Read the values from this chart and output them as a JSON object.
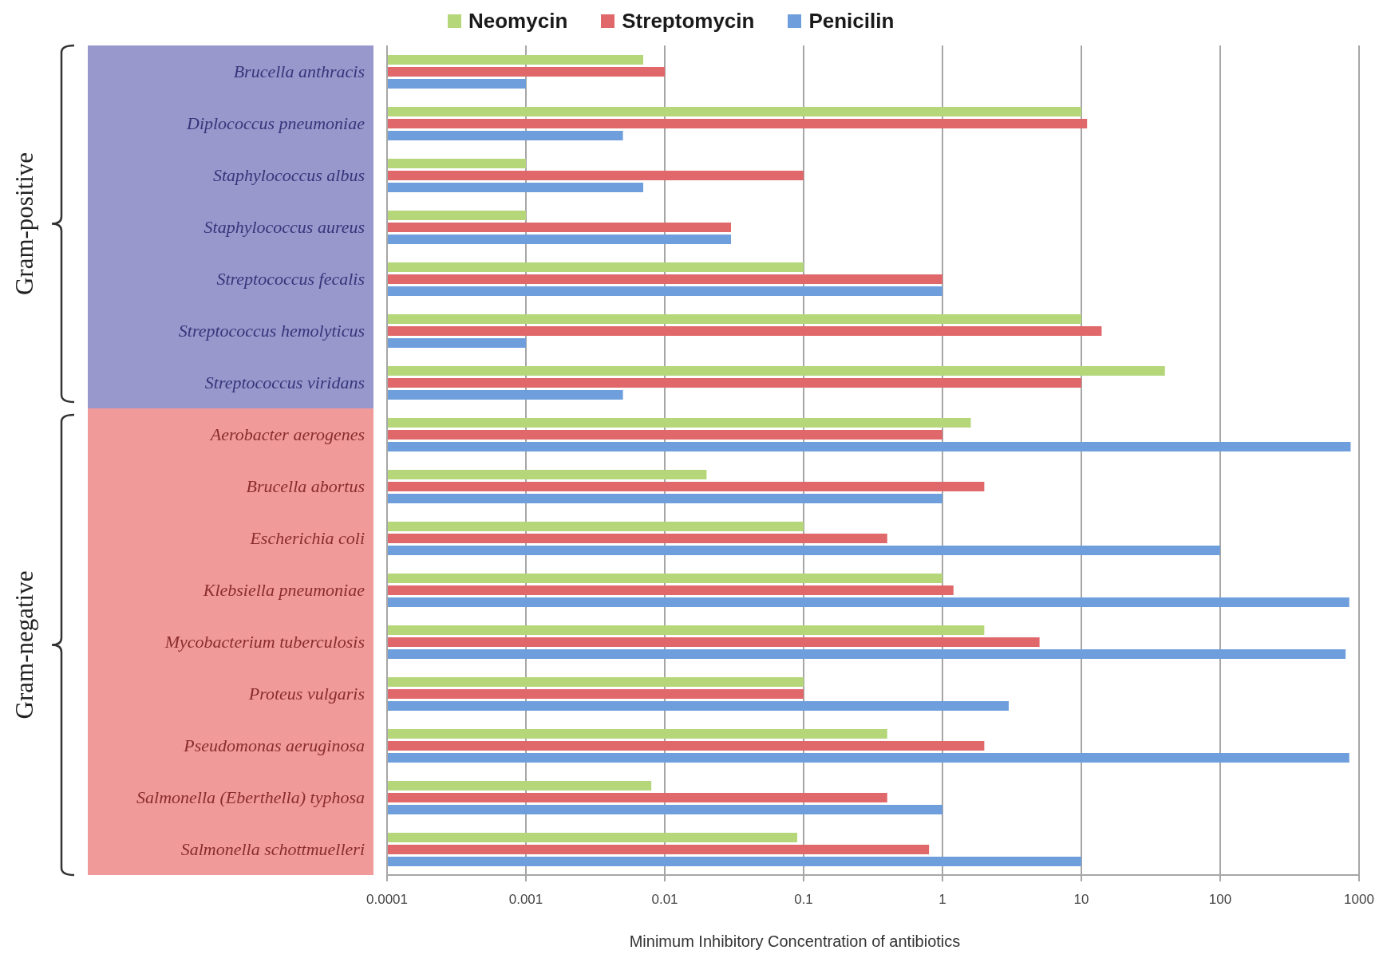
{
  "chart_data": {
    "type": "bar",
    "orientation": "horizontal",
    "xlabel": "Minimum Inhibitory Concentration of antibiotics",
    "categories": [
      "Brucella anthracis",
      "Diplococcus pneumoniae",
      "Staphylococcus albus",
      "Staphylococcus aureus",
      "Streptococcus fecalis",
      "Streptococcus hemolyticus",
      "Streptococcus viridans",
      "Aerobacter aerogenes",
      "Brucella abortus",
      "Escherichia coli",
      "Klebsiella pneumoniae",
      "Mycobacterium tuberculosis",
      "Proteus vulgaris",
      "Pseudomonas aeruginosa",
      "Salmonella (Eberthella) typhosa",
      "Salmonella schottmuelleri"
    ],
    "series": [
      {
        "name": "Neomycin",
        "color": "#b5d77a",
        "values": [
          0.007,
          10,
          0.001,
          0.001,
          0.1,
          10,
          40,
          1.6,
          0.02,
          0.1,
          1,
          2,
          0.1,
          0.4,
          0.008,
          0.09
        ]
      },
      {
        "name": "Streptomycin",
        "color": "#e0676a",
        "values": [
          0.01,
          11,
          0.1,
          0.03,
          1,
          14,
          10,
          1,
          2,
          0.4,
          1.2,
          5,
          0.1,
          2,
          0.4,
          0.8
        ]
      },
      {
        "name": "Penicilin",
        "color": "#6e9fdc",
        "values": [
          0.001,
          0.005,
          0.007,
          0.03,
          1,
          0.001,
          0.005,
          870,
          1,
          100,
          850,
          800,
          3,
          850,
          1,
          10
        ]
      }
    ],
    "xlim": [
      0.0001,
      1000
    ],
    "xticks": [
      0.0001,
      0.001,
      0.01,
      0.1,
      1,
      10,
      100,
      1000
    ],
    "log": "x",
    "grid": "x",
    "legend": "top",
    "annotations": [
      "Gram-positive",
      "Gram-negative"
    ]
  }
}
